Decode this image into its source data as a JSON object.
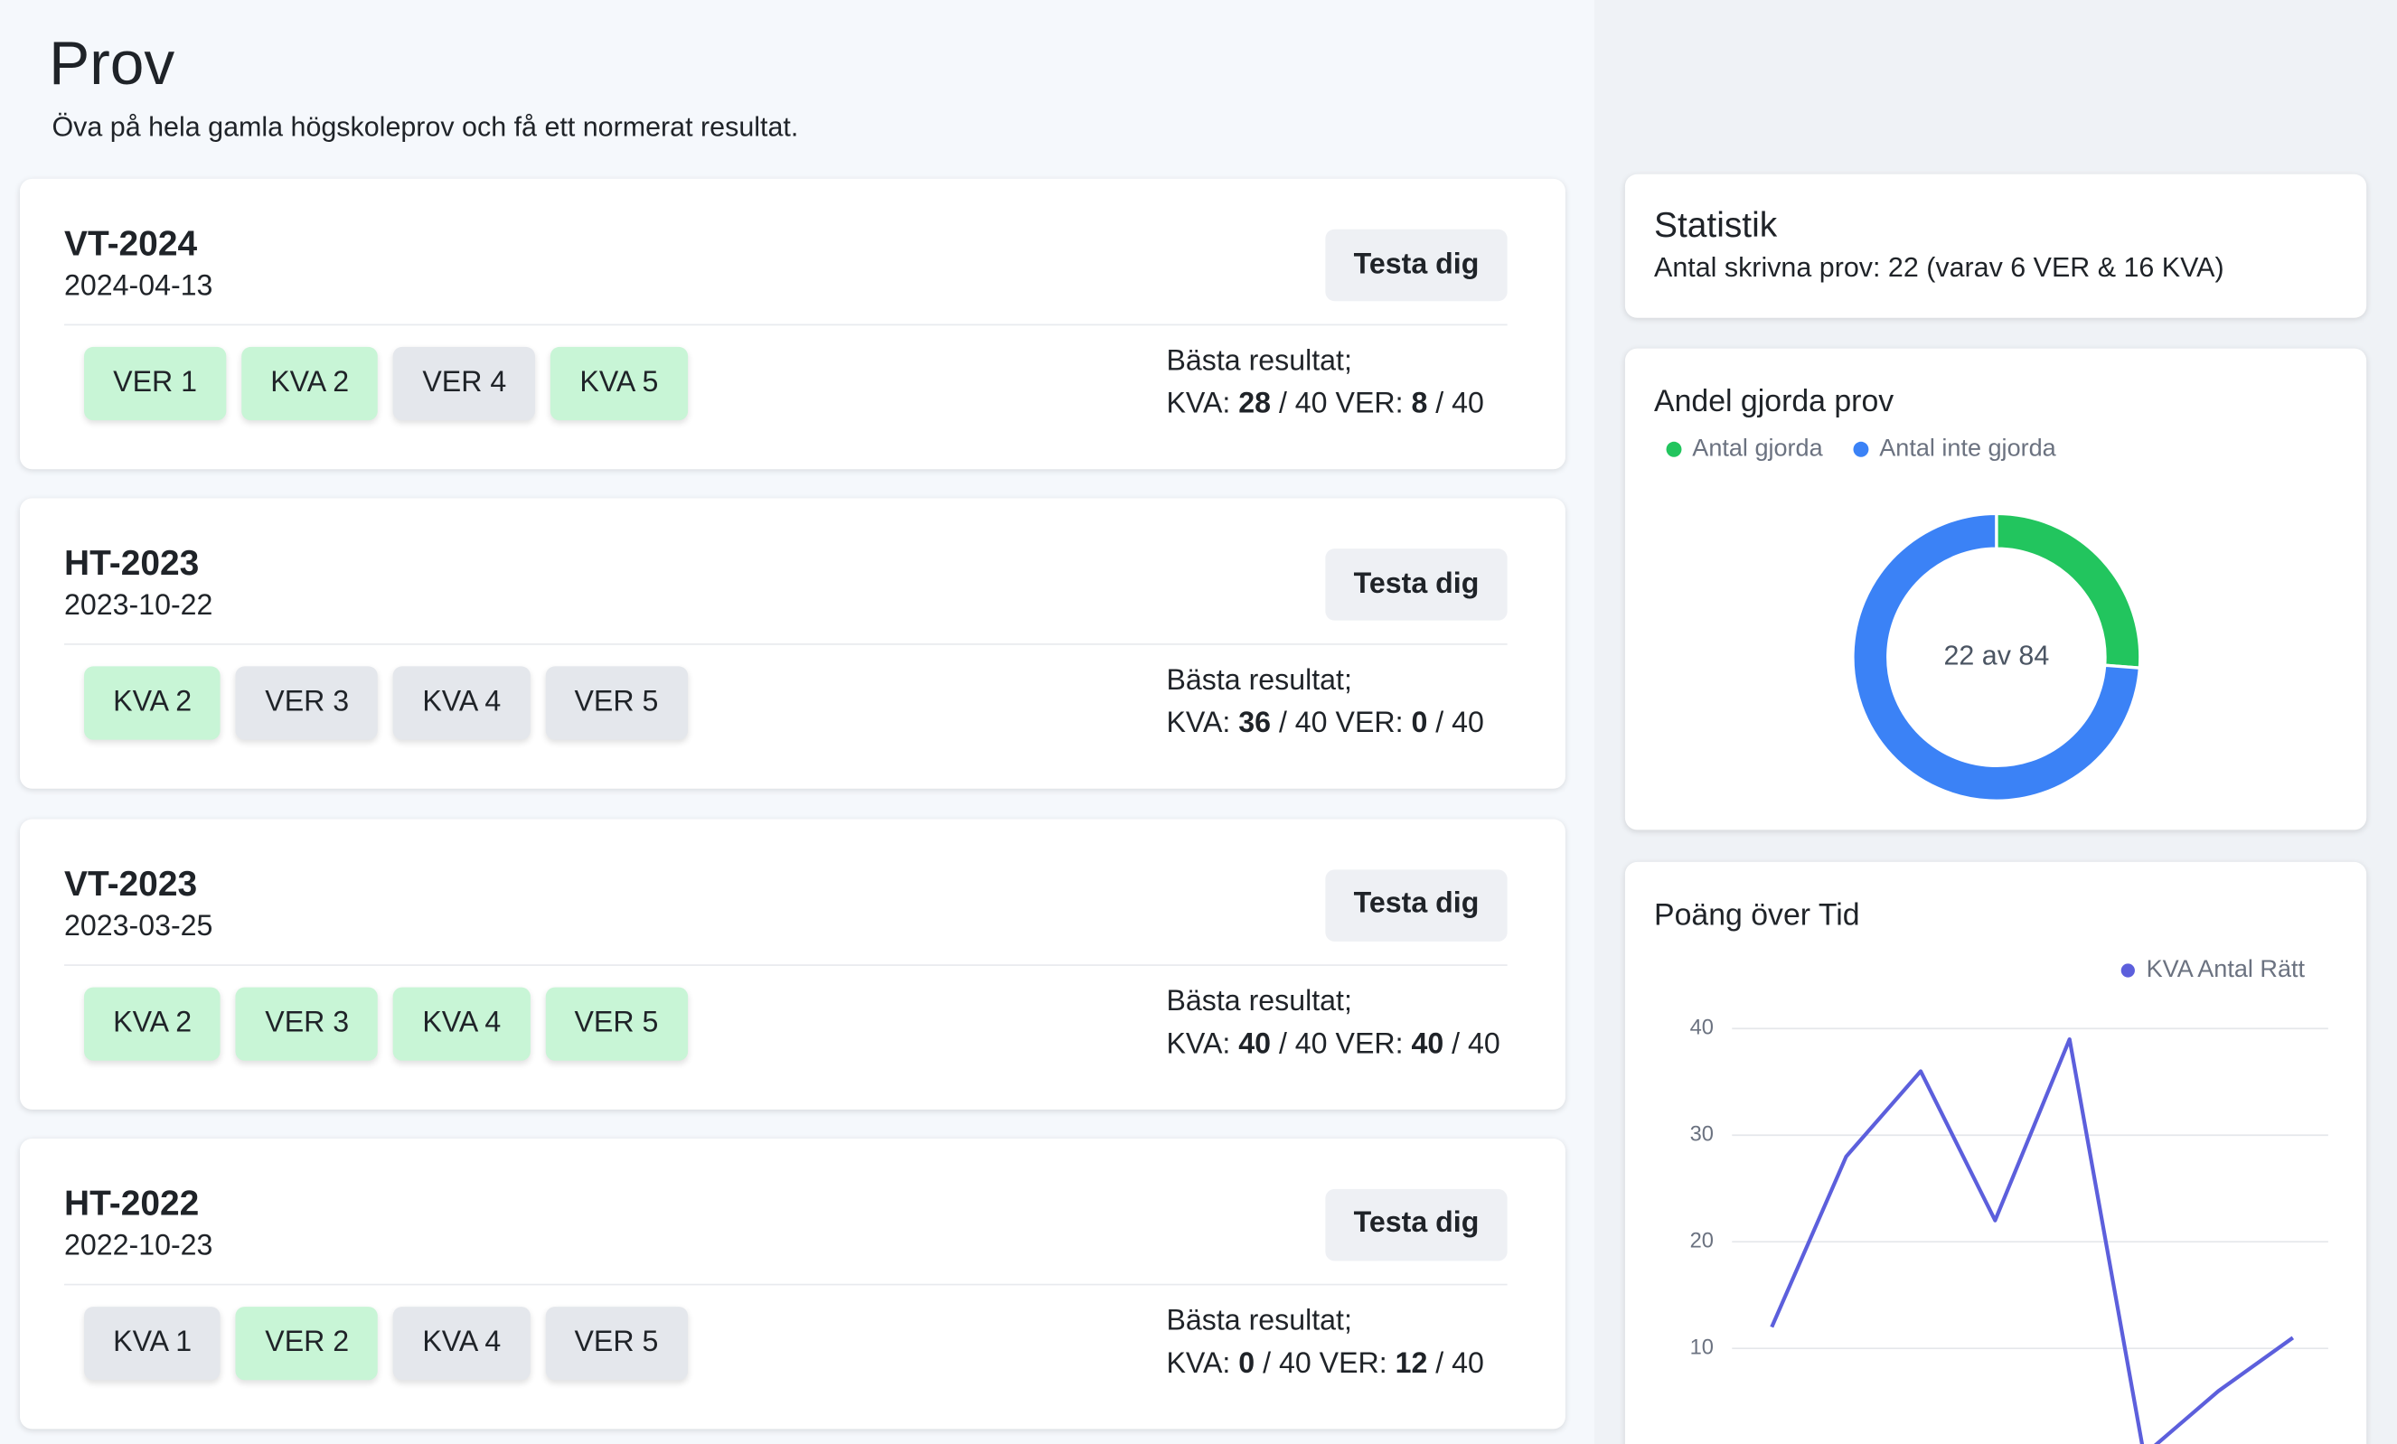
{
  "header": {
    "title": "Prov",
    "subtitle": "Öva på hela gamla högskoleprov och få ett normerat resultat."
  },
  "button_label": "Testa dig",
  "result_labels": {
    "heading": "Bästa resultat;",
    "kva": "KVA:",
    "ver": "VER:",
    "max": "/ 40"
  },
  "exams": [
    {
      "name": "VT-2024",
      "date": "2024-04-13",
      "parts": [
        {
          "label": "VER 1",
          "done": true
        },
        {
          "label": "KVA 2",
          "done": true
        },
        {
          "label": "VER 4",
          "done": false
        },
        {
          "label": "KVA 5",
          "done": true
        }
      ],
      "kva": 28,
      "ver": 8
    },
    {
      "name": "HT-2023",
      "date": "2023-10-22",
      "parts": [
        {
          "label": "KVA 2",
          "done": true
        },
        {
          "label": "VER 3",
          "done": false
        },
        {
          "label": "KVA 4",
          "done": false
        },
        {
          "label": "VER 5",
          "done": false
        }
      ],
      "kva": 36,
      "ver": 0
    },
    {
      "name": "VT-2023",
      "date": "2023-03-25",
      "parts": [
        {
          "label": "KVA 2",
          "done": true
        },
        {
          "label": "VER 3",
          "done": true
        },
        {
          "label": "KVA 4",
          "done": true
        },
        {
          "label": "VER 5",
          "done": true
        }
      ],
      "kva": 40,
      "ver": 40
    },
    {
      "name": "HT-2022",
      "date": "2022-10-23",
      "parts": [
        {
          "label": "KVA 1",
          "done": false
        },
        {
          "label": "VER 2",
          "done": true
        },
        {
          "label": "KVA 4",
          "done": false
        },
        {
          "label": "VER 5",
          "done": false
        }
      ],
      "kva": 0,
      "ver": 12
    }
  ],
  "stats": {
    "title": "Statistik",
    "text": "Antal skrivna prov: 22 (varav 6 VER & 16 KVA)"
  },
  "chart_data": [
    {
      "type": "pie",
      "title": "Andel gjorda prov",
      "categories": [
        "Antal gjorda",
        "Antal inte gjorda"
      ],
      "values": [
        22,
        62
      ],
      "colors": [
        "#22c55e",
        "#3b82f6"
      ],
      "center_label": "22 av 84"
    },
    {
      "type": "line",
      "title": "Poäng över Tid",
      "categories": [
        null,
        null,
        null,
        null,
        null,
        null,
        null,
        null
      ],
      "series": [
        {
          "name": "KVA Antal Rätt",
          "color": "#5c5fdc",
          "values": [
            12,
            28,
            36,
            22,
            39,
            0,
            6,
            11
          ]
        }
      ],
      "ylim": [
        0,
        40
      ],
      "yticks": [
        10,
        20,
        30,
        40
      ],
      "grid": true
    }
  ]
}
